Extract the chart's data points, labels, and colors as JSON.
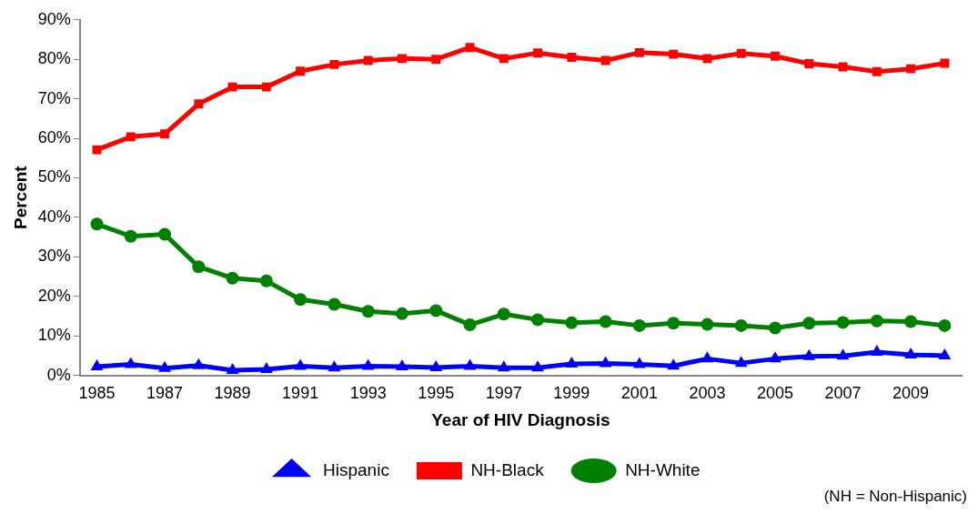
{
  "chart_data": {
    "type": "line",
    "xlabel": "Year of HIV Diagnosis",
    "ylabel": "Percent",
    "categories": [
      "1985",
      null,
      "1987",
      null,
      "1989",
      null,
      "1991",
      null,
      "1993",
      null,
      "1995",
      null,
      "1997",
      null,
      "1999",
      null,
      "2001",
      null,
      "2003",
      null,
      "2005",
      null,
      "2007",
      null,
      "2009",
      null
    ],
    "series": [
      {
        "name": "Hispanic",
        "color": "#0000ff",
        "marker": "triangle",
        "values": [
          2.2,
          2.8,
          1.8,
          2.5,
          1.3,
          1.5,
          2.3,
          1.9,
          2.3,
          2.2,
          2.0,
          2.3,
          1.9,
          1.9,
          2.9,
          3.0,
          2.8,
          2.4,
          4.2,
          3.1,
          4.2,
          4.8,
          4.9,
          5.9,
          5.2,
          5.0
        ]
      },
      {
        "name": "NH-Black",
        "color": "#ff0000",
        "marker": "square",
        "values": [
          57.1,
          60.4,
          61.1,
          68.7,
          73.0,
          73.0,
          77.0,
          78.7,
          79.7,
          80.2,
          80.0,
          83.0,
          80.2,
          81.6,
          80.5,
          79.7,
          81.7,
          81.3,
          80.2,
          81.5,
          80.8,
          78.9,
          78.1,
          76.9,
          77.6,
          79.0
        ]
      },
      {
        "name": "NH-White",
        "color": "#008000",
        "marker": "circle",
        "values": [
          38.3,
          35.2,
          35.7,
          27.5,
          24.6,
          23.9,
          19.2,
          18.0,
          16.2,
          15.6,
          16.4,
          12.8,
          15.5,
          14.1,
          13.3,
          13.6,
          12.6,
          13.2,
          12.9,
          12.6,
          12.0,
          13.2,
          13.4,
          13.8,
          13.6,
          12.6
        ]
      }
    ],
    "ylim": [
      0,
      90
    ],
    "yticks": [
      {
        "value": 0,
        "label": "0%"
      },
      {
        "value": 10,
        "label": "10%"
      },
      {
        "value": 20,
        "label": "20%"
      },
      {
        "value": 30,
        "label": "30%"
      },
      {
        "value": 40,
        "label": "40%"
      },
      {
        "value": 50,
        "label": "50%"
      },
      {
        "value": 60,
        "label": "60%"
      },
      {
        "value": 70,
        "label": "70%"
      },
      {
        "value": 80,
        "label": "80%"
      },
      {
        "value": 90,
        "label": "90%"
      }
    ],
    "grid": false,
    "legend": "bottom",
    "annotations": [
      "(NH = Non-Hispanic)"
    ]
  }
}
